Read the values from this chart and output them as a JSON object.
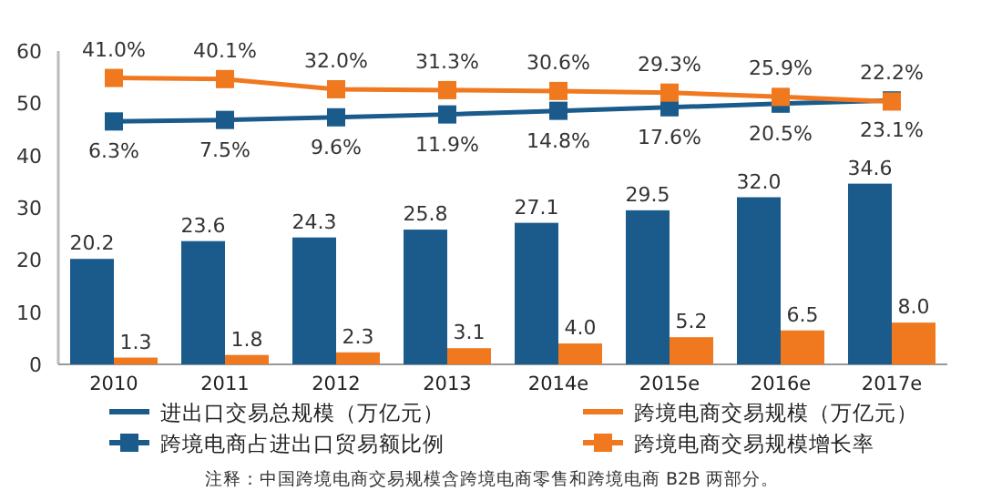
{
  "chart_data": {
    "type": "bar",
    "categories": [
      "2010",
      "2011",
      "2012",
      "2013",
      "2014e",
      "2015e",
      "2016e",
      "2017e"
    ],
    "series": [
      {
        "name": "进出口交易总规模（万亿元）",
        "color": "#1a5b8c",
        "values": [
          20.2,
          23.6,
          24.3,
          25.8,
          27.1,
          29.5,
          32.0,
          34.6
        ],
        "value_labels": [
          "20.2",
          "23.6",
          "24.3",
          "25.8",
          "27.1",
          "29.5",
          "32.0",
          "34.6"
        ]
      },
      {
        "name": "跨境电商交易规模（万亿元）",
        "color": "#f0781e",
        "values": [
          1.3,
          1.8,
          2.3,
          3.1,
          4.0,
          5.2,
          6.5,
          8.0
        ],
        "value_labels": [
          "1.3",
          "1.8",
          "2.3",
          "3.1",
          "4.0",
          "5.2",
          "6.5",
          "8.0"
        ]
      },
      {
        "name": "跨境电商占进出口贸易额比例",
        "type": "line",
        "axis": "y2",
        "color": "#1a5b8c",
        "values": [
          6.3,
          7.5,
          9.6,
          11.9,
          14.8,
          17.6,
          20.5,
          23.1
        ],
        "value_labels": [
          "6.3%",
          "7.5%",
          "9.6%",
          "11.9%",
          "14.8%",
          "17.6%",
          "20.5%",
          "23.1%"
        ]
      },
      {
        "name": "跨境电商交易规模增长率",
        "type": "line",
        "axis": "y2",
        "color": "#f0781e",
        "values": [
          41.0,
          40.1,
          32.0,
          31.3,
          30.6,
          29.3,
          25.9,
          22.2
        ],
        "value_labels": [
          "41.0%",
          "40.1%",
          "32.0%",
          "31.3%",
          "30.6%",
          "29.3%",
          "25.9%",
          "22.2%"
        ]
      }
    ],
    "ylim": [
      0,
      60
    ],
    "yticks": [
      0,
      10,
      20,
      30,
      40,
      50,
      60
    ],
    "y2lim": [
      -187.5,
      62.5
    ],
    "legend": "bottom",
    "marker": "square",
    "grid": false,
    "annotations": [
      "注释：中国跨境电商交易规模含跨境电商零售和跨境电商 B2B 两部分。"
    ]
  }
}
